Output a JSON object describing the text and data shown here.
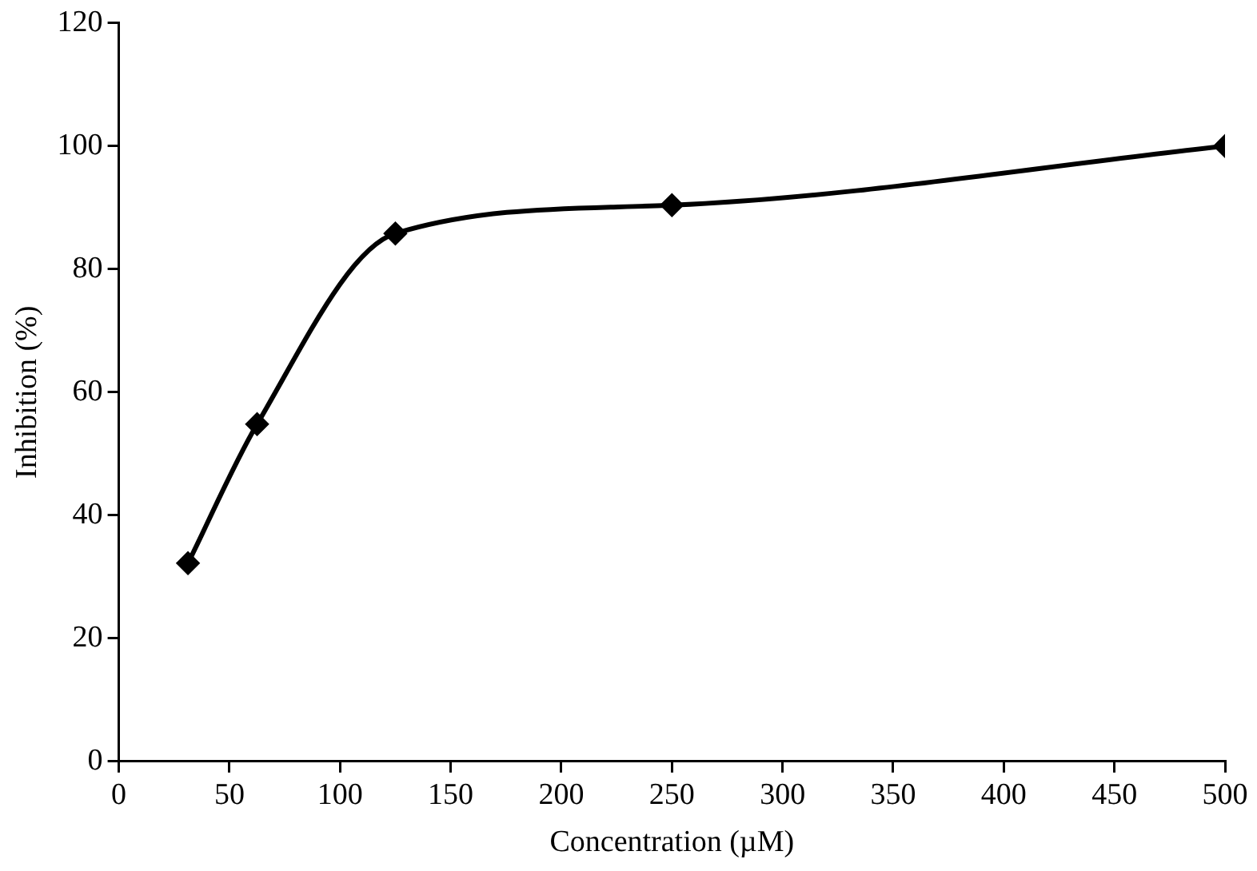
{
  "chart_data": {
    "type": "line",
    "xlabel": "Concentration (µM)",
    "ylabel": "Inhibition (%)",
    "x": [
      31.25,
      62.5,
      125,
      250,
      500
    ],
    "series": [
      {
        "color": "#000000",
        "values": [
          32.2,
          54.8,
          85.8,
          90.4,
          100
        ]
      }
    ],
    "xlim": [
      0,
      500
    ],
    "xticks": [
      0,
      50,
      100,
      150,
      200,
      250,
      300,
      350,
      400,
      450,
      500
    ],
    "ylim": [
      0,
      120
    ],
    "yticks": [
      0,
      20,
      40,
      60,
      80,
      100,
      120
    ],
    "grid": false,
    "legend": false,
    "marker": "diamond",
    "line_style": "solid"
  }
}
